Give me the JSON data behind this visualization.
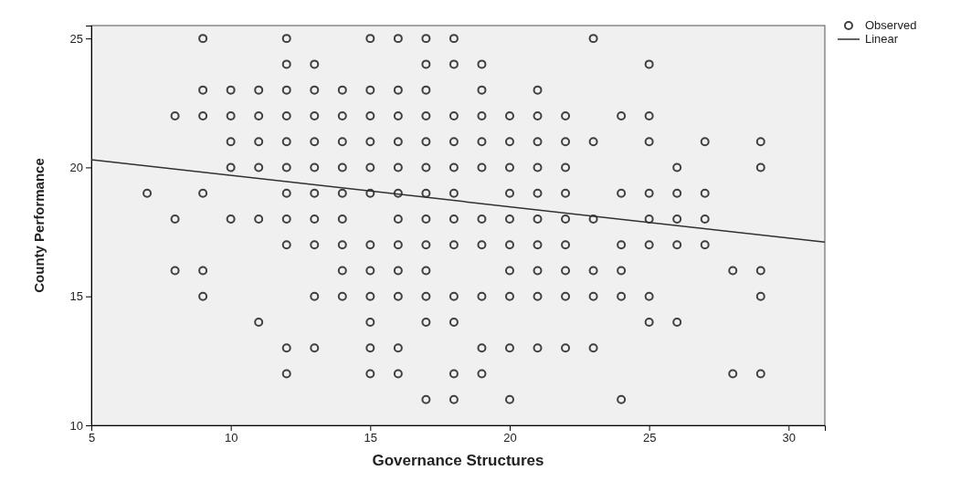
{
  "chart_data": {
    "type": "scatter",
    "xlabel": "Governance Structures",
    "ylabel": "County Performance",
    "xlim": [
      5,
      31.3
    ],
    "ylim": [
      10,
      25.5
    ],
    "xticks": [
      5,
      10,
      15,
      20,
      25,
      30
    ],
    "yticks": [
      10,
      15,
      20,
      25
    ],
    "grid": false,
    "legend": "top right",
    "series": [
      {
        "name": "Observed",
        "marker": "circle",
        "color": "#404040",
        "x": [
          9,
          12,
          15,
          16,
          17,
          18,
          23,
          12,
          13,
          17,
          18,
          19,
          25,
          9,
          10,
          11,
          12,
          13,
          14,
          15,
          16,
          17,
          19,
          21,
          8,
          9,
          10,
          11,
          12,
          13,
          14,
          15,
          16,
          17,
          18,
          19,
          20,
          21,
          22,
          24,
          25,
          10,
          11,
          12,
          13,
          14,
          15,
          16,
          17,
          18,
          19,
          20,
          21,
          22,
          23,
          25,
          27,
          29,
          10,
          11,
          12,
          13,
          14,
          15,
          16,
          17,
          18,
          19,
          20,
          21,
          22,
          26,
          29,
          7,
          9,
          12,
          13,
          14,
          15,
          16,
          17,
          18,
          20,
          21,
          22,
          24,
          25,
          26,
          27,
          8,
          10,
          11,
          12,
          13,
          14,
          16,
          17,
          18,
          19,
          20,
          21,
          22,
          23,
          25,
          26,
          27,
          12,
          13,
          14,
          15,
          16,
          17,
          18,
          19,
          20,
          21,
          22,
          24,
          25,
          26,
          27,
          8,
          9,
          14,
          15,
          16,
          17,
          20,
          21,
          22,
          23,
          24,
          28,
          29,
          9,
          13,
          14,
          15,
          16,
          17,
          18,
          19,
          20,
          21,
          22,
          23,
          24,
          25,
          29,
          11,
          15,
          17,
          18,
          25,
          26,
          12,
          13,
          15,
          16,
          19,
          20,
          21,
          22,
          23,
          12,
          15,
          16,
          18,
          19,
          28,
          29,
          17,
          18,
          20,
          24
        ],
        "values": [
          25,
          25,
          25,
          25,
          25,
          25,
          25,
          24,
          24,
          24,
          24,
          24,
          24,
          23,
          23,
          23,
          23,
          23,
          23,
          23,
          23,
          23,
          23,
          23,
          22,
          22,
          22,
          22,
          22,
          22,
          22,
          22,
          22,
          22,
          22,
          22,
          22,
          22,
          22,
          22,
          22,
          21,
          21,
          21,
          21,
          21,
          21,
          21,
          21,
          21,
          21,
          21,
          21,
          21,
          21,
          21,
          21,
          21,
          20,
          20,
          20,
          20,
          20,
          20,
          20,
          20,
          20,
          20,
          20,
          20,
          20,
          20,
          20,
          19,
          19,
          19,
          19,
          19,
          19,
          19,
          19,
          19,
          19,
          19,
          19,
          19,
          19,
          19,
          19,
          18,
          18,
          18,
          18,
          18,
          18,
          18,
          18,
          18,
          18,
          18,
          18,
          18,
          18,
          18,
          18,
          18,
          17,
          17,
          17,
          17,
          17,
          17,
          17,
          17,
          17,
          17,
          17,
          17,
          17,
          17,
          17,
          16,
          16,
          16,
          16,
          16,
          16,
          16,
          16,
          16,
          16,
          16,
          16,
          16,
          15,
          15,
          15,
          15,
          15,
          15,
          15,
          15,
          15,
          15,
          15,
          15,
          15,
          15,
          15,
          14,
          14,
          14,
          14,
          14,
          14,
          13,
          13,
          13,
          13,
          13,
          13,
          13,
          13,
          13,
          12,
          12,
          12,
          12,
          12,
          12,
          12,
          11,
          11,
          11,
          11
        ]
      },
      {
        "name": "Linear",
        "type": "line",
        "color": "#303030",
        "line_style": "solid",
        "x": [
          5,
          31.3
        ],
        "values": [
          20.3,
          17.1
        ]
      }
    ]
  }
}
